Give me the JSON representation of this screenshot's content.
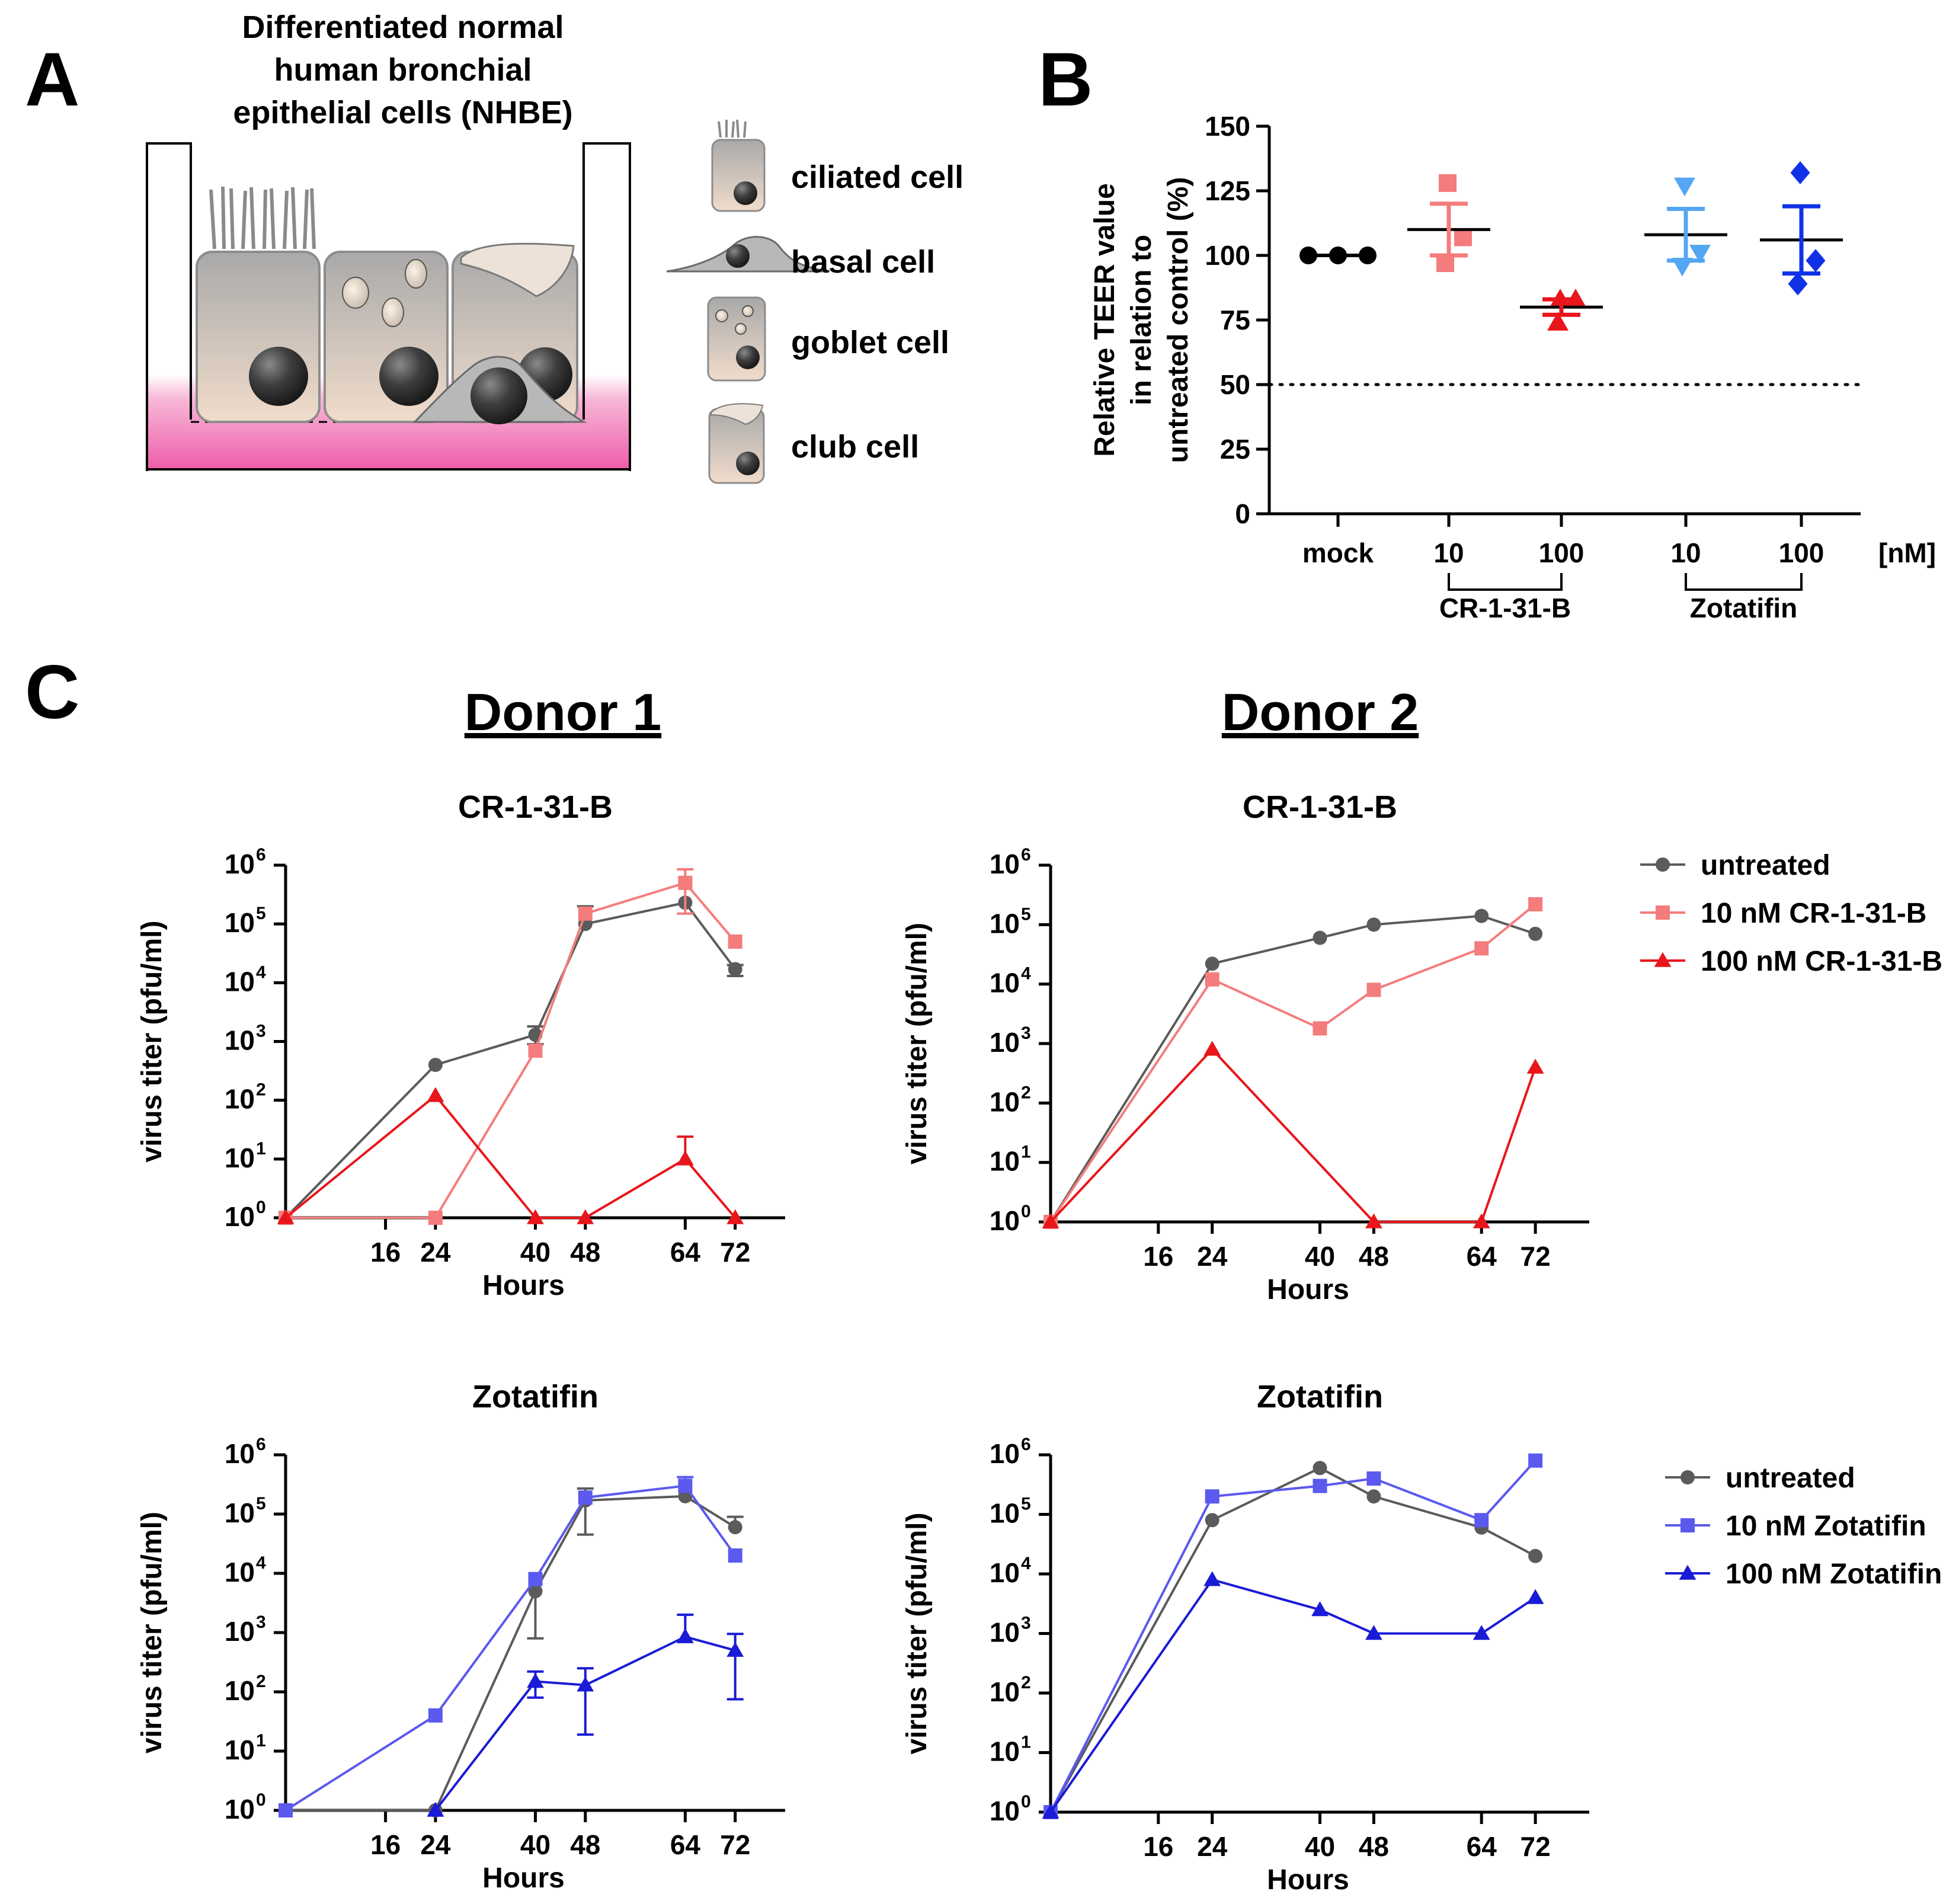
{
  "panel_labels": {
    "a": "A",
    "b": "B",
    "c": "C"
  },
  "panel_a": {
    "title_lines": [
      "Differentiated normal",
      "human bronchial",
      "epithelial cells (NHBE)"
    ],
    "cell_labels": [
      "ciliated cell",
      "basal cell",
      "goblet cell",
      "club cell"
    ]
  },
  "colors": {
    "untreated": "#5b5b5b",
    "cr_10": "#f47c7c",
    "cr_100": "#e8161b",
    "zot_10": "#5b59ee",
    "zot_100": "#1a1bd6",
    "mock": "#000000",
    "teer_zot_10": "#54a6f2",
    "teer_zot_100": "#1032e6",
    "medium": "#ef6eb4"
  },
  "donors": [
    "Donor 1",
    "Donor 2"
  ],
  "legends": {
    "cr": [
      "untreated",
      "10 nM CR-1-31-B",
      "100 nM CR-1-31-B"
    ],
    "zot": [
      "untreated",
      "10 nM Zotatifin",
      "100 nM Zotatifin"
    ]
  },
  "chart_data": [
    {
      "id": "B",
      "type": "scatter",
      "ylabel_lines": [
        "Relative TEER value",
        "in relation to",
        "untreated control (%)"
      ],
      "ylim": [
        0,
        150
      ],
      "yticks": [
        0,
        25,
        50,
        75,
        100,
        125,
        150
      ],
      "reference_line": 50,
      "categories": [
        "mock",
        "10",
        "100",
        "10",
        "100"
      ],
      "unit": "[nM]",
      "groups": [
        {
          "label": "CR-1-31-B",
          "categories": [
            1,
            2
          ]
        },
        {
          "label": "Zotatifin",
          "categories": [
            3,
            4
          ]
        }
      ],
      "series": [
        {
          "name": "mock",
          "marker": "circle",
          "color_key": "mock",
          "points": [
            100,
            100,
            100
          ],
          "mean": 100,
          "sem": 0
        },
        {
          "name": "10 nM CR-1-31-B",
          "marker": "square",
          "color_key": "cr_10",
          "points": [
            128,
            107,
            97
          ],
          "mean": 110,
          "sem": 10
        },
        {
          "name": "100 nM CR-1-31-B",
          "marker": "triangle-up",
          "color_key": "cr_100",
          "points": [
            83,
            83,
            74
          ],
          "mean": 80,
          "sem": 3
        },
        {
          "name": "10 nM Zotatifin",
          "marker": "triangle-down",
          "color_key": "teer_zot_10",
          "points": [
            127,
            101,
            96
          ],
          "mean": 108,
          "sem": 10
        },
        {
          "name": "100 nM Zotatifin",
          "marker": "diamond",
          "color_key": "teer_zot_100",
          "points": [
            132,
            98,
            89
          ],
          "mean": 106,
          "sem": 13
        }
      ]
    },
    {
      "id": "C-donor1-cr",
      "type": "line",
      "title": "CR-1-31-B",
      "xlabel": "Hours",
      "ylabel": "virus titer (pfu/ml)",
      "yscale": "log",
      "ylim": [
        1,
        1000000
      ],
      "xlim": [
        0,
        80
      ],
      "xticks": [
        16,
        24,
        40,
        48,
        64,
        72
      ],
      "series": [
        {
          "name": "untreated",
          "marker": "circle",
          "color_key": "untreated",
          "x": [
            0,
            24,
            40,
            48,
            64,
            72
          ],
          "y": [
            1,
            400,
            1300,
            100000,
            230000,
            17000
          ],
          "err_up": [
            null,
            null,
            1800,
            200000,
            null,
            20000
          ],
          "err_down": [
            null,
            null,
            900,
            null,
            null,
            13000
          ]
        },
        {
          "name": "10 nM CR-1-31-B",
          "marker": "square",
          "color_key": "cr_10",
          "x": [
            0,
            24,
            40,
            48,
            64,
            72
          ],
          "y": [
            1,
            1,
            700,
            150000,
            500000,
            50000
          ],
          "err_up": [
            null,
            null,
            null,
            null,
            850000,
            null
          ],
          "err_down": [
            null,
            null,
            null,
            null,
            150000,
            null
          ]
        },
        {
          "name": "100 nM CR-1-31-B",
          "marker": "triangle-up",
          "color_key": "cr_100",
          "x": [
            0,
            24,
            40,
            48,
            64,
            72
          ],
          "y": [
            1,
            120,
            1,
            1,
            10,
            1
          ],
          "err_up": [
            null,
            null,
            null,
            null,
            24,
            null
          ],
          "err_down": [
            null,
            null,
            null,
            null,
            null,
            null
          ]
        }
      ]
    },
    {
      "id": "C-donor2-cr",
      "type": "line",
      "title": "CR-1-31-B",
      "xlabel": "Hours",
      "ylabel": "virus titer (pfu/ml)",
      "yscale": "log",
      "ylim": [
        1,
        1000000
      ],
      "xlim": [
        0,
        80
      ],
      "xticks": [
        16,
        24,
        40,
        48,
        64,
        72
      ],
      "legend_key": "cr",
      "series": [
        {
          "name": "untreated",
          "marker": "circle",
          "color_key": "untreated",
          "x": [
            0,
            24,
            40,
            48,
            64,
            72
          ],
          "y": [
            1,
            22000,
            60000,
            100000,
            140000,
            70000
          ]
        },
        {
          "name": "10 nM CR-1-31-B",
          "marker": "square",
          "color_key": "cr_10",
          "x": [
            0,
            24,
            40,
            48,
            64,
            72
          ],
          "y": [
            1,
            12000,
            1800,
            8000,
            40000,
            220000
          ]
        },
        {
          "name": "100 nM CR-1-31-B",
          "marker": "triangle-up",
          "color_key": "cr_100",
          "x": [
            0,
            24,
            48,
            64,
            72
          ],
          "y": [
            1,
            800,
            1,
            1,
            400
          ]
        }
      ]
    },
    {
      "id": "C-donor1-zot",
      "type": "line",
      "title": "Zotatifin",
      "xlabel": "Hours",
      "ylabel": "virus titer (pfu/ml)",
      "yscale": "log",
      "ylim": [
        1,
        1000000
      ],
      "xlim": [
        0,
        80
      ],
      "xticks": [
        16,
        24,
        40,
        48,
        64,
        72
      ],
      "series": [
        {
          "name": "untreated",
          "marker": "circle",
          "color_key": "untreated",
          "x": [
            0,
            24,
            40,
            48,
            64,
            72
          ],
          "y": [
            1,
            1,
            5000,
            170000,
            200000,
            60000
          ],
          "err_up": [
            null,
            null,
            null,
            270000,
            null,
            90000
          ],
          "err_down": [
            null,
            null,
            800,
            45000,
            null,
            null
          ]
        },
        {
          "name": "10 nM Zotatifin",
          "marker": "square",
          "color_key": "zot_10",
          "x": [
            0,
            24,
            40,
            48,
            64,
            72
          ],
          "y": [
            1,
            40,
            8000,
            190000,
            300000,
            20000
          ],
          "err_up": [
            null,
            null,
            null,
            null,
            420000,
            null
          ],
          "err_down": [
            null,
            null,
            null,
            null,
            null,
            null
          ]
        },
        {
          "name": "100 nM Zotatifin",
          "marker": "triangle-up",
          "color_key": "zot_100",
          "x": [
            24,
            40,
            48,
            64,
            72
          ],
          "y": [
            1,
            150,
            130,
            850,
            500
          ],
          "err_up": [
            null,
            220,
            250,
            2000,
            950
          ],
          "err_down": [
            null,
            80,
            19,
            null,
            75
          ]
        }
      ]
    },
    {
      "id": "C-donor2-zot",
      "type": "line",
      "title": "Zotatifin",
      "xlabel": "Hours",
      "ylabel": "virus titer (pfu/ml)",
      "yscale": "log",
      "ylim": [
        1,
        1000000
      ],
      "xlim": [
        0,
        80
      ],
      "xticks": [
        16,
        24,
        40,
        48,
        64,
        72
      ],
      "legend_key": "zot",
      "series": [
        {
          "name": "untreated",
          "marker": "circle",
          "color_key": "untreated",
          "x": [
            0,
            24,
            40,
            48,
            64,
            72
          ],
          "y": [
            1,
            80000,
            600000,
            200000,
            60000,
            20000
          ]
        },
        {
          "name": "10 nM Zotatifin",
          "marker": "square",
          "color_key": "zot_10",
          "x": [
            0,
            24,
            40,
            48,
            64,
            72
          ],
          "y": [
            1,
            200000,
            300000,
            400000,
            80000,
            800000
          ]
        },
        {
          "name": "100 nM Zotatifin",
          "marker": "triangle-up",
          "color_key": "zot_100",
          "x": [
            0,
            24,
            40,
            48,
            64,
            72
          ],
          "y": [
            1,
            8000,
            2500,
            1000,
            1000,
            4000
          ]
        }
      ]
    }
  ]
}
